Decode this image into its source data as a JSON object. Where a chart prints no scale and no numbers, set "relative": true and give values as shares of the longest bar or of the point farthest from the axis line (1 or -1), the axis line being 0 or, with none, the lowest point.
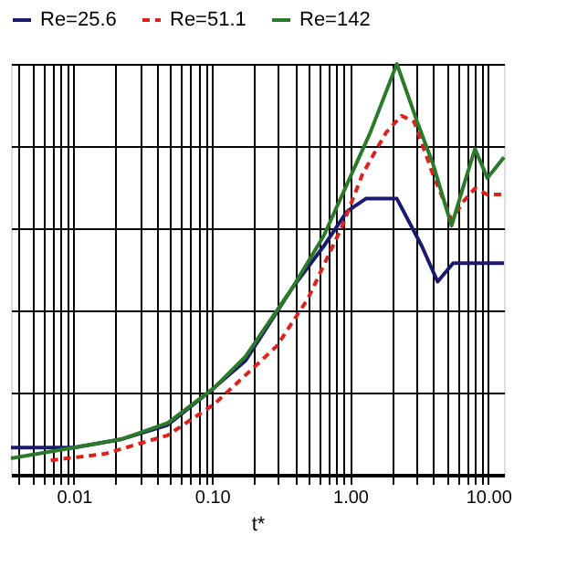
{
  "chart_data": {
    "type": "line",
    "xlabel": "t*",
    "relative": true,
    "log": "x",
    "grid": true,
    "legend": "top",
    "marker": "none",
    "xlim": [
      0.0035,
      13
    ],
    "xticks": [
      {
        "value": 0.004,
        "label": null
      },
      {
        "value": 0.005,
        "label": null
      },
      {
        "value": 0.006,
        "label": null
      },
      {
        "value": 0.007,
        "label": null
      },
      {
        "value": 0.008,
        "label": null
      },
      {
        "value": 0.009,
        "label": null
      },
      {
        "value": 0.01,
        "label": "0.01"
      },
      {
        "value": 0.02,
        "label": null
      },
      {
        "value": 0.03,
        "label": null
      },
      {
        "value": 0.04,
        "label": null
      },
      {
        "value": 0.05,
        "label": null
      },
      {
        "value": 0.06,
        "label": null
      },
      {
        "value": 0.07,
        "label": null
      },
      {
        "value": 0.08,
        "label": null
      },
      {
        "value": 0.09,
        "label": null
      },
      {
        "value": 0.1,
        "label": "0.10"
      },
      {
        "value": 0.2,
        "label": null
      },
      {
        "value": 0.3,
        "label": null
      },
      {
        "value": 0.4,
        "label": null
      },
      {
        "value": 0.5,
        "label": null
      },
      {
        "value": 0.6,
        "label": null
      },
      {
        "value": 0.7,
        "label": null
      },
      {
        "value": 0.8,
        "label": null
      },
      {
        "value": 0.9,
        "label": null
      },
      {
        "value": 1,
        "label": "1.00"
      },
      {
        "value": 2,
        "label": null
      },
      {
        "value": 3,
        "label": null
      },
      {
        "value": 4,
        "label": null
      },
      {
        "value": 5,
        "label": null
      },
      {
        "value": 6,
        "label": null
      },
      {
        "value": 7,
        "label": null
      },
      {
        "value": 8,
        "label": null
      },
      {
        "value": 9,
        "label": null
      },
      {
        "value": 10,
        "label": "10.00"
      }
    ],
    "series": [
      {
        "name": "Re=25.6",
        "color": "#1a1a6e",
        "line_style": "solid",
        "x": [
          0.0035,
          0.01,
          0.0218,
          0.0477,
          0.104,
          0.175,
          0.382,
          0.643,
          0.949,
          1.3,
          2.18,
          3.31,
          4.3,
          5.57,
          13
        ],
        "values": [
          0.066,
          0.066,
          0.086,
          0.121,
          0.212,
          0.278,
          0.455,
          0.556,
          0.641,
          0.672,
          0.672,
          0.556,
          0.47,
          0.515,
          0.515
        ]
      },
      {
        "name": "Re=51.1",
        "color": "#e0201b",
        "line_style": "dashed",
        "x": [
          0.0068,
          0.0168,
          0.0477,
          0.104,
          0.294,
          0.496,
          0.879,
          1.23,
          1.82,
          2.36,
          2.91,
          3.97,
          5.43,
          6.68,
          8.02,
          9.87,
          13
        ],
        "values": [
          0.035,
          0.051,
          0.096,
          0.172,
          0.313,
          0.429,
          0.606,
          0.732,
          0.833,
          0.874,
          0.859,
          0.732,
          0.621,
          0.667,
          0.697,
          0.682,
          0.682
        ]
      },
      {
        "name": "Re=142",
        "color": "#2a7a2a",
        "line_style": "solid",
        "x": [
          0.0035,
          0.01,
          0.0218,
          0.0477,
          0.104,
          0.175,
          0.382,
          0.643,
          0.949,
          1.4,
          2.18,
          3.06,
          3.97,
          5.43,
          6.68,
          8.02,
          9.87,
          13
        ],
        "values": [
          0.04,
          0.066,
          0.086,
          0.126,
          0.212,
          0.288,
          0.455,
          0.581,
          0.707,
          0.833,
          1,
          0.859,
          0.758,
          0.606,
          0.707,
          0.793,
          0.722,
          0.773
        ]
      }
    ]
  }
}
